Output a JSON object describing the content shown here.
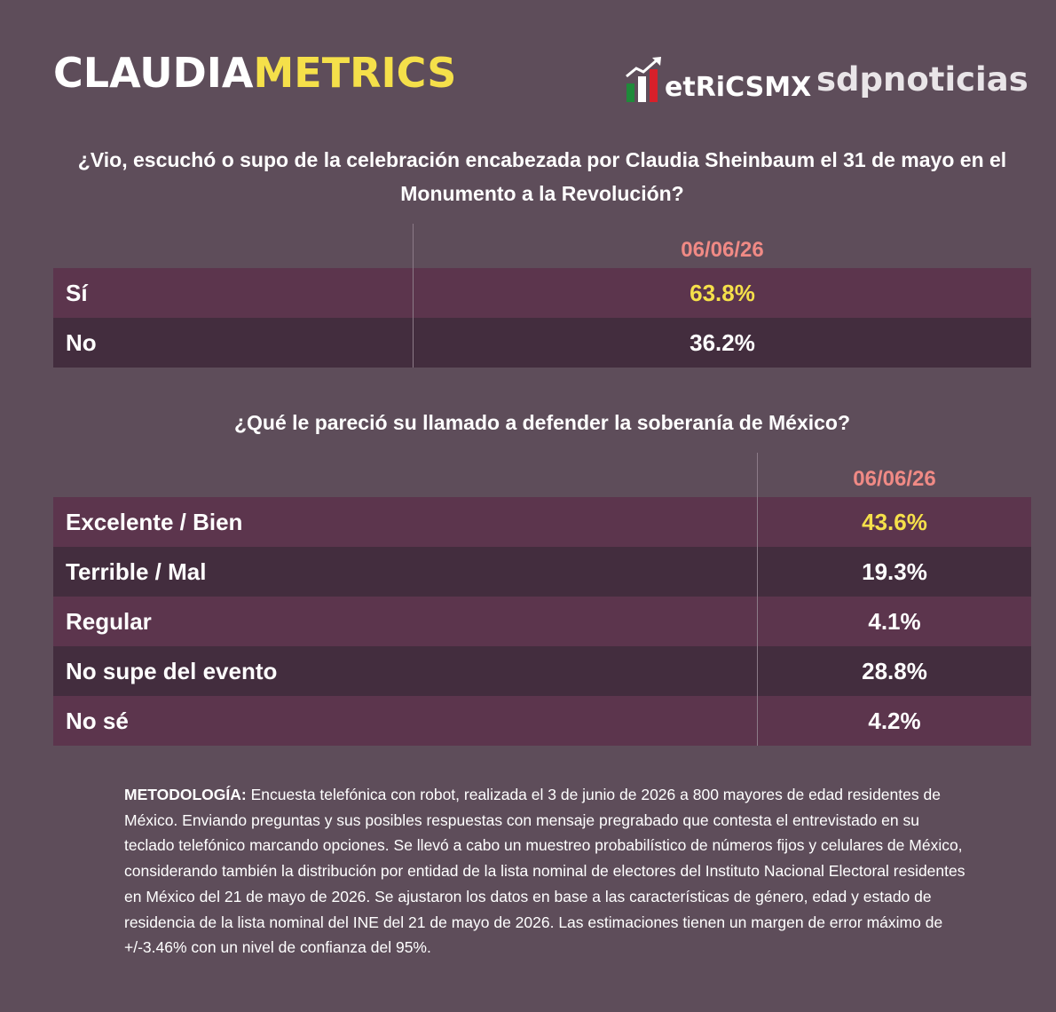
{
  "brand": {
    "claudia_part1": "CLAUDIA",
    "claudia_part2": "METRICS",
    "metricsmx": "etRiCSMX",
    "sdp": "sdpnoticias"
  },
  "question1": {
    "title": "¿Vio, escuchó o supo de la celebración encabezada por Claudia Sheinbaum el 31 de mayo en el Monumento a la Revolución?",
    "date": "06/06/26",
    "rows": [
      {
        "label": "Sí",
        "value": "63.8%"
      },
      {
        "label": "No",
        "value": "36.2%"
      }
    ]
  },
  "question2": {
    "title": "¿Qué le pareció su llamado a defender la soberanía de México?",
    "date": "06/06/26",
    "rows": [
      {
        "label": "Excelente / Bien",
        "value": "43.6%"
      },
      {
        "label": "Terrible / Mal",
        "value": "19.3%"
      },
      {
        "label": "Regular",
        "value": "4.1%"
      },
      {
        "label": "No supe del evento",
        "value": "28.8%"
      },
      {
        "label": "No sé",
        "value": "4.2%"
      }
    ]
  },
  "methodology": {
    "label": "METODOLOGÍA:",
    "text": " Encuesta telefónica con robot, realizada el 3 de junio de 2026 a 800 mayores de edad residentes de México. Enviando preguntas y sus posibles respuestas con mensaje pregrabado que contesta el entrevistado en su teclado telefónico marcando opciones. Se llevó a cabo un muestreo probabilístico de números fijos y celulares de México, considerando también la distribución por entidad de la lista nominal de electores del Instituto Nacional Electoral residentes en México del 21 de mayo de 2026. Se ajustaron los datos en base a las características de género, edad y estado de residencia de la lista nominal del INE del 21 de mayo de 2026. Las estimaciones tienen un margen de error máximo de +/-3.46% con un nivel de confianza del 95%."
  },
  "colors": {
    "background": "#5e4d5a",
    "row_odd": "#5c354d",
    "row_even": "#432d3e",
    "date": "#f08a85",
    "highlight": "#f5e04a"
  }
}
